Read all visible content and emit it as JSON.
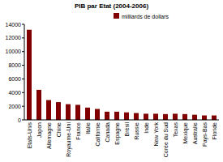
{
  "chart_data": {
    "type": "bar",
    "title": "PIB par Etat (2004-2006)",
    "categories": [
      "Etats-Unis",
      "Japon",
      "Allemagne",
      "Chine",
      "Royaume-Uni",
      "France",
      "Italie",
      "Californie",
      "Canada",
      "Espagne",
      "Brésil",
      "Russie",
      "Inde",
      "New York",
      "Corée du Sud",
      "Texas",
      "Mexique",
      "Australie",
      "Pays-Bas",
      "Floride"
    ],
    "series": [
      {
        "name": "milliards de dollars",
        "color": "#800000",
        "values": [
          13200,
          4400,
          2900,
          2600,
          2300,
          2200,
          1800,
          1600,
          1200,
          1200,
          1100,
          1000,
          900,
          900,
          850,
          900,
          850,
          750,
          650,
          650
        ]
      }
    ],
    "ylim": [
      0,
      14000
    ],
    "yticks": [
      0,
      2000,
      4000,
      6000,
      8000,
      10000,
      12000,
      14000
    ],
    "grid": false,
    "legend": "upper right"
  }
}
